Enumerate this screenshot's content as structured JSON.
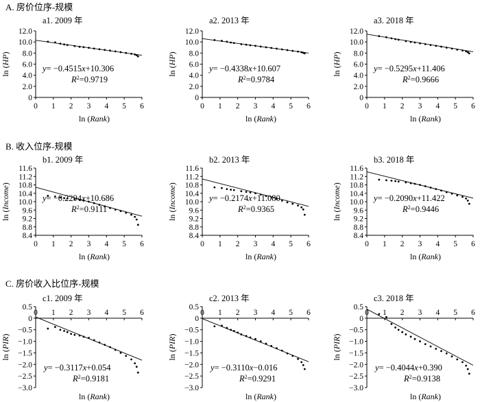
{
  "sections": [
    {
      "label": "A. 房价位序-规模"
    },
    {
      "label": "B. 收入位序-规模"
    },
    {
      "label": "C. 房价收入比位序-规模"
    }
  ],
  "chart_data": [
    {
      "id": "a1",
      "type": "scatter",
      "title": "a1. 2009 年",
      "xlabel_main": "ln (",
      "xlabel_italic": "Rank",
      "xlabel_end": ")",
      "ylabel_main": "ln (",
      "ylabel_italic": "HP",
      "ylabel_end": ")",
      "xlim": [
        0,
        6
      ],
      "ylim": [
        0,
        12
      ],
      "xticks": [
        "0",
        "1",
        "2",
        "3",
        "4",
        "5",
        "6"
      ],
      "yticks": [
        "0",
        "2.0",
        "4.0",
        "6.0",
        "8.0",
        "10.0",
        "12.0"
      ],
      "yvals": [
        0,
        2,
        4,
        6,
        8,
        10,
        12
      ],
      "fit": {
        "slope": -0.4515,
        "intercept": 10.306,
        "x_start": 0
      },
      "r2_value": "0.9719",
      "eq_y": "y",
      "eq_mid": "= −0.4515",
      "eq_x": "x",
      "eq_rest": "+10.306",
      "r2_r": "R",
      "r2_sup": "2",
      "r2_rest": "=0.9719",
      "points": [
        [
          0.69,
          10.05
        ],
        [
          1.1,
          9.93
        ],
        [
          1.39,
          9.7
        ],
        [
          1.61,
          9.55
        ],
        [
          1.79,
          9.45
        ],
        [
          2.2,
          9.26
        ],
        [
          2.48,
          9.13
        ],
        [
          2.71,
          9.06
        ],
        [
          3.0,
          8.95
        ],
        [
          3.3,
          8.81
        ],
        [
          3.6,
          8.69
        ],
        [
          3.9,
          8.57
        ],
        [
          4.2,
          8.45
        ],
        [
          4.5,
          8.3
        ],
        [
          4.8,
          8.16
        ],
        [
          5.1,
          8.02
        ],
        [
          5.4,
          7.87
        ],
        [
          5.6,
          7.74
        ],
        [
          5.7,
          7.62
        ],
        [
          5.78,
          7.4
        ]
      ]
    },
    {
      "id": "a2",
      "type": "scatter",
      "title": "a2. 2013 年",
      "xlabel_main": "ln (",
      "xlabel_italic": "Rank",
      "xlabel_end": ")",
      "ylabel_main": "ln (",
      "ylabel_italic": "HP",
      "ylabel_end": ")",
      "xlim": [
        0,
        6
      ],
      "ylim": [
        0,
        12
      ],
      "xticks": [
        "0",
        "1",
        "2",
        "3",
        "4",
        "5",
        "6"
      ],
      "yticks": [
        "0",
        "2.0",
        "4.0",
        "6.0",
        "8.0",
        "10.0",
        "12.0"
      ],
      "yvals": [
        0,
        2,
        4,
        6,
        8,
        10,
        12
      ],
      "fit": {
        "slope": -0.4338,
        "intercept": 10.607,
        "x_start": 0
      },
      "r2_value": "0.9784",
      "eq_y": "y",
      "eq_mid": "= −0.4338",
      "eq_x": "x",
      "eq_rest": "+10.607",
      "r2_r": "R",
      "r2_sup": "2",
      "r2_rest": "=0.9784",
      "points": [
        [
          0.69,
          10.35
        ],
        [
          1.1,
          10.2
        ],
        [
          1.39,
          10.05
        ],
        [
          1.61,
          9.9
        ],
        [
          1.79,
          9.8
        ],
        [
          2.2,
          9.6
        ],
        [
          2.48,
          9.5
        ],
        [
          2.71,
          9.4
        ],
        [
          3.0,
          9.3
        ],
        [
          3.3,
          9.17
        ],
        [
          3.6,
          9.04
        ],
        [
          3.9,
          8.92
        ],
        [
          4.2,
          8.8
        ],
        [
          4.5,
          8.66
        ],
        [
          4.8,
          8.53
        ],
        [
          5.1,
          8.4
        ],
        [
          5.4,
          8.27
        ],
        [
          5.6,
          8.15
        ],
        [
          5.7,
          8.05
        ],
        [
          5.78,
          7.95
        ]
      ]
    },
    {
      "id": "a3",
      "type": "scatter",
      "title": "a3. 2018 年",
      "xlabel_main": "ln (",
      "xlabel_italic": "Rank",
      "xlabel_end": ")",
      "ylabel_main": "ln (",
      "ylabel_italic": "HP",
      "ylabel_end": ")",
      "xlim": [
        0,
        6
      ],
      "ylim": [
        0,
        12
      ],
      "xticks": [
        "0",
        "1",
        "2",
        "3",
        "4",
        "5",
        "6"
      ],
      "yticks": [
        "0",
        "2.0",
        "4.0",
        "6.0",
        "8.0",
        "10.0",
        "12.0"
      ],
      "yvals": [
        0,
        2,
        4,
        6,
        8,
        10,
        12
      ],
      "fit": {
        "slope": -0.5295,
        "intercept": 11.406,
        "x_start": 0
      },
      "r2_value": "0.9666",
      "eq_y": "y",
      "eq_mid": "= −0.5295",
      "eq_x": "x",
      "eq_rest": "+11.406",
      "r2_r": "R",
      "r2_sup": "2",
      "r2_rest": "=0.9666",
      "points": [
        [
          0.69,
          11.05
        ],
        [
          1.1,
          10.85
        ],
        [
          1.39,
          10.65
        ],
        [
          1.61,
          10.5
        ],
        [
          1.79,
          10.4
        ],
        [
          2.2,
          10.15
        ],
        [
          2.48,
          10.0
        ],
        [
          2.71,
          9.9
        ],
        [
          3.0,
          9.75
        ],
        [
          3.3,
          9.6
        ],
        [
          3.6,
          9.45
        ],
        [
          3.9,
          9.3
        ],
        [
          4.2,
          9.15
        ],
        [
          4.5,
          8.97
        ],
        [
          4.8,
          8.8
        ],
        [
          5.1,
          8.62
        ],
        [
          5.4,
          8.45
        ],
        [
          5.6,
          8.3
        ],
        [
          5.7,
          8.15
        ],
        [
          5.78,
          7.95
        ]
      ]
    },
    {
      "id": "b1",
      "type": "scatter",
      "title": "b1. 2009 年",
      "xlabel_main": "ln (",
      "xlabel_italic": "Rank",
      "xlabel_end": ")",
      "ylabel_main": "ln (",
      "ylabel_italic": "Income",
      "ylabel_end": ")",
      "xlim": [
        0,
        6
      ],
      "ylim": [
        8.4,
        11.6
      ],
      "xticks": [
        "0",
        "1",
        "2",
        "3",
        "4",
        "5",
        "6"
      ],
      "yticks": [
        "8.4",
        "8.8",
        "9.2",
        "9.6",
        "10.0",
        "10.4",
        "10.8",
        "11.2",
        "11.6"
      ],
      "yvals": [
        8.4,
        8.8,
        9.2,
        9.6,
        10.0,
        10.4,
        10.8,
        11.2,
        11.6
      ],
      "fit": {
        "slope": -0.2294,
        "intercept": 10.686,
        "x_start": 0
      },
      "r2_value": "0.9111",
      "eq_y": "y",
      "eq_mid": "= −0.2294",
      "eq_x": "x",
      "eq_rest": "+10.686",
      "r2_r": "R",
      "r2_sup": "2",
      "r2_rest": "=0.9111",
      "points": [
        [
          0.69,
          10.28
        ],
        [
          1.1,
          10.25
        ],
        [
          1.39,
          10.2
        ],
        [
          1.61,
          10.17
        ],
        [
          1.79,
          10.15
        ],
        [
          2.2,
          10.12
        ],
        [
          2.48,
          10.08
        ],
        [
          2.71,
          10.05
        ],
        [
          3.0,
          10.0
        ],
        [
          3.3,
          9.93
        ],
        [
          3.6,
          9.85
        ],
        [
          3.9,
          9.78
        ],
        [
          4.2,
          9.7
        ],
        [
          4.5,
          9.62
        ],
        [
          4.8,
          9.55
        ],
        [
          5.1,
          9.47
        ],
        [
          5.4,
          9.38
        ],
        [
          5.6,
          9.28
        ],
        [
          5.7,
          9.15
        ],
        [
          5.78,
          8.9
        ]
      ]
    },
    {
      "id": "b2",
      "type": "scatter",
      "title": "b2. 2013 年",
      "xlabel_main": "ln (",
      "xlabel_italic": "Rank",
      "xlabel_end": ")",
      "ylabel_main": "ln (",
      "ylabel_italic": "Income",
      "ylabel_end": ")",
      "xlim": [
        0,
        6
      ],
      "ylim": [
        8.4,
        11.6
      ],
      "xticks": [
        "0",
        "1",
        "2",
        "3",
        "4",
        "5",
        "6"
      ],
      "yticks": [
        "8.4",
        "8.8",
        "9.2",
        "9.6",
        "10.0",
        "10.4",
        "10.8",
        "11.2",
        "11.6"
      ],
      "yvals": [
        8.4,
        8.8,
        9.2,
        9.6,
        10.0,
        10.4,
        10.8,
        11.2,
        11.6
      ],
      "fit": {
        "slope": -0.2174,
        "intercept": 11.08,
        "x_start": 0
      },
      "r2_value": "0.9365",
      "eq_y": "y",
      "eq_mid": "= −0.2174",
      "eq_x": "x",
      "eq_rest": "+11.080",
      "r2_r": "R",
      "r2_sup": "2",
      "r2_rest": "=0.9365",
      "points": [
        [
          0.69,
          10.68
        ],
        [
          1.1,
          10.65
        ],
        [
          1.39,
          10.6
        ],
        [
          1.61,
          10.57
        ],
        [
          1.79,
          10.55
        ],
        [
          2.2,
          10.5
        ],
        [
          2.48,
          10.47
        ],
        [
          2.71,
          10.44
        ],
        [
          3.0,
          10.4
        ],
        [
          3.3,
          10.34
        ],
        [
          3.6,
          10.27
        ],
        [
          3.9,
          10.2
        ],
        [
          4.2,
          10.13
        ],
        [
          4.5,
          10.05
        ],
        [
          4.8,
          9.97
        ],
        [
          5.1,
          9.9
        ],
        [
          5.4,
          9.82
        ],
        [
          5.6,
          9.73
        ],
        [
          5.7,
          9.63
        ],
        [
          5.78,
          9.38
        ]
      ]
    },
    {
      "id": "b3",
      "type": "scatter",
      "title": "b3. 2018 年",
      "xlabel_main": "ln (",
      "xlabel_italic": "Rank",
      "xlabel_end": ")",
      "ylabel_main": "ln (",
      "ylabel_italic": "Income",
      "ylabel_end": ")",
      "xlim": [
        0,
        6
      ],
      "ylim": [
        8.4,
        11.6
      ],
      "xticks": [
        "0",
        "1",
        "2",
        "3",
        "4",
        "5",
        "6"
      ],
      "yticks": [
        "8.4",
        "8.8",
        "9.2",
        "9.6",
        "10.0",
        "10.4",
        "10.8",
        "11.2",
        "11.6"
      ],
      "yvals": [
        8.4,
        8.8,
        9.2,
        9.6,
        10.0,
        10.4,
        10.8,
        11.2,
        11.6
      ],
      "fit": {
        "slope": -0.209,
        "intercept": 11.422,
        "x_start": 0
      },
      "r2_value": "0.9446",
      "eq_y": "y",
      "eq_mid": "= −0.2090",
      "eq_x": "x",
      "eq_rest": "+11.422",
      "r2_r": "R",
      "r2_sup": "2",
      "r2_rest": "=0.9446",
      "points": [
        [
          0.69,
          11.05
        ],
        [
          1.1,
          11.02
        ],
        [
          1.39,
          11.0
        ],
        [
          1.61,
          10.98
        ],
        [
          1.79,
          10.96
        ],
        [
          2.2,
          10.92
        ],
        [
          2.48,
          10.88
        ],
        [
          2.71,
          10.85
        ],
        [
          3.0,
          10.8
        ],
        [
          3.3,
          10.74
        ],
        [
          3.6,
          10.67
        ],
        [
          3.9,
          10.6
        ],
        [
          4.2,
          10.53
        ],
        [
          4.5,
          10.45
        ],
        [
          4.8,
          10.38
        ],
        [
          5.1,
          10.3
        ],
        [
          5.4,
          10.23
        ],
        [
          5.6,
          10.15
        ],
        [
          5.7,
          10.05
        ],
        [
          5.78,
          9.9
        ]
      ]
    },
    {
      "id": "c1",
      "type": "scatter",
      "title": "c1. 2009 年",
      "xlabel_main": "ln (",
      "xlabel_italic": "Rank",
      "xlabel_end": ")",
      "ylabel_main": "ln (",
      "ylabel_italic": "PIR",
      "ylabel_end": ")",
      "xlim": [
        0,
        6
      ],
      "ylim": [
        -3.0,
        0.5
      ],
      "xticks": [
        "0",
        "1",
        "2",
        "3",
        "4",
        "5",
        "6"
      ],
      "yticks": [
        "−3.0",
        "−2.5",
        "−2.0",
        "−1.5",
        "−1.0",
        "−0.5",
        "0",
        "0.5"
      ],
      "yvals": [
        -3.0,
        -2.5,
        -2.0,
        -1.5,
        -1.0,
        -0.5,
        0,
        0.5
      ],
      "fit": {
        "slope": -0.3117,
        "intercept": 0.054,
        "x_start": 0
      },
      "r2_value": "0.9181",
      "eq_y": "y",
      "eq_mid": "= −0.3117",
      "eq_x": "x",
      "eq_rest": "+0.054",
      "r2_r": "R",
      "r2_sup": "2",
      "r2_rest": "=0.9181",
      "points": [
        [
          0.69,
          -0.45
        ],
        [
          1.1,
          -0.38
        ],
        [
          1.39,
          -0.5
        ],
        [
          1.61,
          -0.55
        ],
        [
          1.79,
          -0.6
        ],
        [
          2.0,
          -0.68
        ],
        [
          2.2,
          -0.72
        ],
        [
          2.48,
          -0.75
        ],
        [
          2.71,
          -0.8
        ],
        [
          3.0,
          -0.85
        ],
        [
          3.3,
          -0.95
        ],
        [
          3.6,
          -1.05
        ],
        [
          3.9,
          -1.15
        ],
        [
          4.2,
          -1.25
        ],
        [
          4.5,
          -1.37
        ],
        [
          4.8,
          -1.5
        ],
        [
          5.1,
          -1.63
        ],
        [
          5.4,
          -1.78
        ],
        [
          5.6,
          -1.95
        ],
        [
          5.7,
          -2.1
        ],
        [
          5.78,
          -2.35
        ]
      ]
    },
    {
      "id": "c2",
      "type": "scatter",
      "title": "c2. 2013 年",
      "xlabel_main": "ln (",
      "xlabel_italic": "Rank",
      "xlabel_end": ")",
      "ylabel_main": "ln (",
      "ylabel_italic": "PIR",
      "ylabel_end": ")",
      "xlim": [
        0,
        6
      ],
      "ylim": [
        -3.0,
        0.5
      ],
      "xticks": [
        "0",
        "1",
        "2",
        "3",
        "4",
        "5",
        "6"
      ],
      "yticks": [
        "−3.0",
        "−2.5",
        "−2.0",
        "−1.5",
        "−1.0",
        "−0.5",
        "0",
        "0.5"
      ],
      "yvals": [
        -3.0,
        -2.5,
        -2.0,
        -1.5,
        -1.0,
        -0.5,
        0,
        0.5
      ],
      "fit": {
        "slope": -0.311,
        "intercept": -0.016,
        "x_start": 0
      },
      "r2_value": "0.9291",
      "eq_y": "y",
      "eq_mid": "= −0.3110",
      "eq_x": "x",
      "eq_rest": "−0.016",
      "r2_r": "R",
      "r2_sup": "2",
      "r2_rest": "=0.9291",
      "points": [
        [
          0.69,
          -0.35
        ],
        [
          1.1,
          -0.32
        ],
        [
          1.39,
          -0.42
        ],
        [
          1.61,
          -0.5
        ],
        [
          1.79,
          -0.55
        ],
        [
          2.0,
          -0.62
        ],
        [
          2.2,
          -0.7
        ],
        [
          2.48,
          -0.77
        ],
        [
          2.71,
          -0.83
        ],
        [
          3.0,
          -0.9
        ],
        [
          3.3,
          -1.0
        ],
        [
          3.6,
          -1.1
        ],
        [
          3.9,
          -1.2
        ],
        [
          4.2,
          -1.3
        ],
        [
          4.5,
          -1.4
        ],
        [
          4.8,
          -1.52
        ],
        [
          5.1,
          -1.63
        ],
        [
          5.4,
          -1.76
        ],
        [
          5.6,
          -1.9
        ],
        [
          5.7,
          -2.03
        ],
        [
          5.78,
          -2.2
        ]
      ]
    },
    {
      "id": "c3",
      "type": "scatter",
      "title": "c3. 2018 年",
      "xlabel_main": "ln (",
      "xlabel_italic": "Rank",
      "xlabel_end": ")",
      "ylabel_main": "ln (",
      "ylabel_italic": "PIR",
      "ylabel_end": ")",
      "xlim": [
        0,
        6
      ],
      "ylim": [
        -3.0,
        0.5
      ],
      "xticks": [
        "0",
        "1",
        "2",
        "3",
        "4",
        "5",
        "6"
      ],
      "yticks": [
        "−3.0",
        "−2.5",
        "−2.0",
        "−1.5",
        "−1.0",
        "−0.5",
        "0",
        "0.5"
      ],
      "yvals": [
        -3.0,
        -2.5,
        -2.0,
        -1.5,
        -1.0,
        -0.5,
        0,
        0.5
      ],
      "fit": {
        "slope": -0.4044,
        "intercept": 0.39,
        "x_start": 0
      },
      "r2_value": "0.9138",
      "eq_y": "y",
      "eq_mid": "= −0.4044",
      "eq_x": "x",
      "eq_rest": "+0.390",
      "r2_r": "R",
      "r2_sup": "2",
      "r2_rest": "=0.9138",
      "points": [
        [
          0.69,
          0.18
        ],
        [
          1.1,
          0.05
        ],
        [
          1.39,
          -0.25
        ],
        [
          1.61,
          -0.4
        ],
        [
          1.79,
          -0.5
        ],
        [
          2.0,
          -0.6
        ],
        [
          2.2,
          -0.7
        ],
        [
          2.48,
          -0.8
        ],
        [
          2.71,
          -0.9
        ],
        [
          3.0,
          -1.0
        ],
        [
          3.3,
          -1.12
        ],
        [
          3.6,
          -1.22
        ],
        [
          3.9,
          -1.32
        ],
        [
          4.2,
          -1.42
        ],
        [
          4.5,
          -1.52
        ],
        [
          4.8,
          -1.65
        ],
        [
          5.1,
          -1.78
        ],
        [
          5.4,
          -1.9
        ],
        [
          5.6,
          -2.05
        ],
        [
          5.7,
          -2.2
        ],
        [
          5.78,
          -2.4
        ]
      ]
    }
  ]
}
